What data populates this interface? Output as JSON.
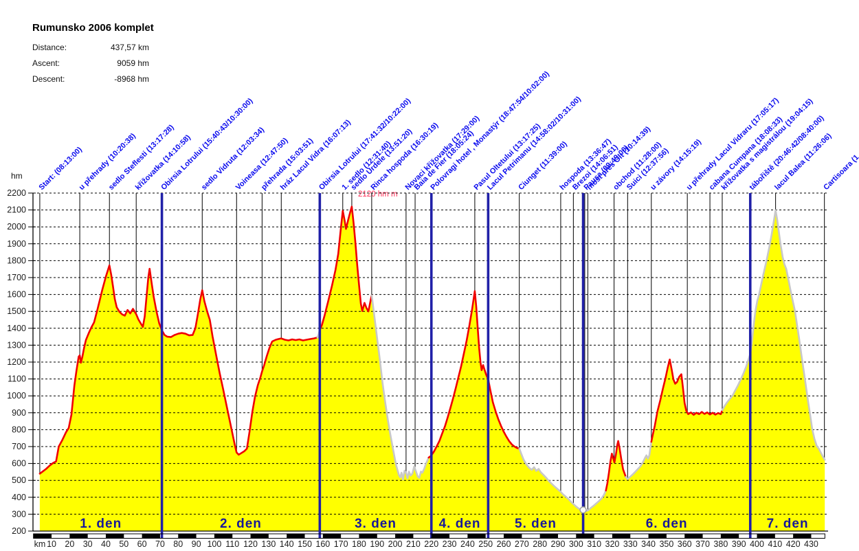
{
  "header": {
    "title": "Rumunsko 2006 komplet",
    "stats": [
      {
        "label": "Distance:",
        "value": "437,57 km"
      },
      {
        "label": "Ascent:",
        "value": "9059 hm"
      },
      {
        "label": "Descent:",
        "value": "-8968 hm"
      }
    ]
  },
  "annotation": {
    "max_label": "2120 hm m",
    "color": "#ff2d55"
  },
  "chart_data": {
    "type": "area",
    "title": "Rumunsko 2006 komplet",
    "y_axis": {
      "unit": "hm",
      "min": 200,
      "max": 2200,
      "tick_step": 100
    },
    "x_axis": {
      "unit": "km",
      "min": 0,
      "max": 437.57,
      "tick_start": 10,
      "tick_end": 430,
      "tick_step": 10
    },
    "grid": "horizontal-dashed",
    "colors": {
      "fill": "#ffff00",
      "line_red": "#f00000",
      "line_gray": "#c8c8c8",
      "day_line": "#2020a8",
      "waypoint_text": "#0a0aee",
      "day_text": "#171799",
      "axis_text": "#1c1c1c"
    },
    "day_boundaries_km": [
      71,
      158.3,
      220,
      251.4,
      303.9,
      396.3
    ],
    "days": [
      {
        "label": "1. den",
        "from_km": 3.5,
        "to_km": 71
      },
      {
        "label": "2. den",
        "from_km": 71,
        "to_km": 158.3
      },
      {
        "label": "3. den",
        "from_km": 158.3,
        "to_km": 220
      },
      {
        "label": "4. den",
        "from_km": 220,
        "to_km": 251.4
      },
      {
        "label": "5. den",
        "from_km": 251.4,
        "to_km": 303.9
      },
      {
        "label": "6. den",
        "from_km": 303.9,
        "to_km": 396.3
      },
      {
        "label": "7. den",
        "from_km": 396.3,
        "to_km": 437.6
      }
    ],
    "waypoints": [
      {
        "km": 3.5,
        "label": "Start: (08:13:00)"
      },
      {
        "km": 25.6,
        "label": "u přehrady (10:20:38)"
      },
      {
        "km": 42,
        "label": "sedlo Steflesti (13:17:28)"
      },
      {
        "km": 56.8,
        "label": "křižovatka (14:10:58)"
      },
      {
        "km": 71,
        "label": "Obirsia Lotrului (15:40:43/10:30:00)"
      },
      {
        "km": 93.3,
        "label": "sedlo Vidruta (12:03:34)"
      },
      {
        "km": 112.3,
        "label": "Voineasa (12:47:50)"
      },
      {
        "km": 126.4,
        "label": "přehrada (15:03:51)"
      },
      {
        "km": 137,
        "label": "hráz Lacul Vidra (16:07:13)"
      },
      {
        "km": 158.3,
        "label": "Obirsia Lotrului (17:41:32/10:22:00)"
      },
      {
        "km": 171,
        "label": "1. sedlo (12:31:40)"
      },
      {
        "km": 176,
        "label": "sedlo Urdele (13:51:20)"
      },
      {
        "km": 187,
        "label": "Rinca hospoda (16:30:19)"
      },
      {
        "km": 206,
        "label": "Novaci křižovatka (17:29:00)"
      },
      {
        "km": 211,
        "label": "Baia de Fier (18:05:24)"
      },
      {
        "km": 220,
        "label": "Polovragi hotel , Monastýr (18:47:54/10:02:00)"
      },
      {
        "km": 244,
        "label": "Pasul Oltetului (13:17:25)"
      },
      {
        "km": 251.4,
        "label": "Lacul Petrimanu (14:58:02/10:31:00)"
      },
      {
        "km": 268.6,
        "label": "Ciunget (11:39:00)"
      },
      {
        "km": 291.5,
        "label": "hospoda (13:36:47)"
      },
      {
        "km": 298.5,
        "label": "Brezoi (14:06:51)"
      },
      {
        "km": 304.8,
        "label": "Pausa (09:49:00)"
      },
      {
        "km": 306.5,
        "label": "most přes Olt (10:14:39)"
      },
      {
        "km": 321,
        "label": "obchod (11:28:00)"
      },
      {
        "km": 328.5,
        "label": "Suici (12:37:56)"
      },
      {
        "km": 341.6,
        "label": "u závory (14:15:19)"
      },
      {
        "km": 361.5,
        "label": "u přehrady Lacul Vidraru (17:05:17)"
      },
      {
        "km": 374,
        "label": "cabana Cumpana (18:08:33)"
      },
      {
        "km": 380.8,
        "label": "křižovatka s magistrálou (19:04:15)"
      },
      {
        "km": 396.3,
        "label": "tábořiště (20:46:42/08:40:00)"
      },
      {
        "km": 410.3,
        "label": "lacul Balea (11:26:06)"
      },
      {
        "km": 437.3,
        "label": "Cartisoara (1"
      }
    ],
    "segments": [
      {
        "from": 3.5,
        "to": 157,
        "color": "red"
      },
      {
        "from": 157,
        "to": 158.3,
        "color": "gray"
      },
      {
        "from": 158.3,
        "to": 187,
        "color": "red"
      },
      {
        "from": 187,
        "to": 218.5,
        "color": "gray"
      },
      {
        "from": 218.5,
        "to": 268.6,
        "color": "red"
      },
      {
        "from": 268.6,
        "to": 316.5,
        "color": "gray"
      },
      {
        "from": 316.5,
        "to": 327.5,
        "color": "red"
      },
      {
        "from": 327.5,
        "to": 341.6,
        "color": "gray"
      },
      {
        "from": 341.6,
        "to": 380.8,
        "color": "red"
      },
      {
        "from": 380.8,
        "to": 437.5,
        "color": "gray"
      }
    ],
    "marker": {
      "km": 303.9,
      "hm": 325
    },
    "profile": [
      [
        3.5,
        540
      ],
      [
        5,
        552
      ],
      [
        7,
        568
      ],
      [
        9,
        588
      ],
      [
        11,
        604
      ],
      [
        12.5,
        612
      ],
      [
        14,
        700
      ],
      [
        16,
        740
      ],
      [
        18,
        785
      ],
      [
        19.5,
        810
      ],
      [
        21,
        890
      ],
      [
        22.6,
        1060
      ],
      [
        23.8,
        1150
      ],
      [
        25,
        1232
      ],
      [
        25.6,
        1240
      ],
      [
        26.2,
        1196
      ],
      [
        27,
        1230
      ],
      [
        28,
        1285
      ],
      [
        29,
        1330
      ],
      [
        30.5,
        1370
      ],
      [
        32,
        1405
      ],
      [
        33.5,
        1435
      ],
      [
        35,
        1495
      ],
      [
        36.5,
        1560
      ],
      [
        38,
        1625
      ],
      [
        40,
        1705
      ],
      [
        42,
        1772
      ],
      [
        43,
        1715
      ],
      [
        44,
        1645
      ],
      [
        45,
        1572
      ],
      [
        46,
        1525
      ],
      [
        47.5,
        1498
      ],
      [
        49,
        1482
      ],
      [
        50.5,
        1475
      ],
      [
        52,
        1508
      ],
      [
        53.5,
        1488
      ],
      [
        55,
        1515
      ],
      [
        56.8,
        1483
      ],
      [
        58,
        1452
      ],
      [
        59.5,
        1425
      ],
      [
        60.5,
        1408
      ],
      [
        61.5,
        1470
      ],
      [
        62.5,
        1585
      ],
      [
        63.5,
        1700
      ],
      [
        64.2,
        1752
      ],
      [
        65.5,
        1655
      ],
      [
        66.5,
        1585
      ],
      [
        68,
        1500
      ],
      [
        69.5,
        1430
      ],
      [
        71,
        1388
      ],
      [
        72.5,
        1360
      ],
      [
        74,
        1350
      ],
      [
        76,
        1348
      ],
      [
        78,
        1360
      ],
      [
        80,
        1368
      ],
      [
        82,
        1372
      ],
      [
        84,
        1368
      ],
      [
        86,
        1358
      ],
      [
        88,
        1360
      ],
      [
        89.5,
        1400
      ],
      [
        91,
        1490
      ],
      [
        92.2,
        1570
      ],
      [
        93.3,
        1625
      ],
      [
        94.5,
        1560
      ],
      [
        96,
        1500
      ],
      [
        97.5,
        1450
      ],
      [
        99,
        1352
      ],
      [
        101,
        1242
      ],
      [
        103,
        1132
      ],
      [
        105,
        1032
      ],
      [
        107,
        930
      ],
      [
        109,
        828
      ],
      [
        110.5,
        752
      ],
      [
        111.5,
        700
      ],
      [
        112.3,
        665
      ],
      [
        113.5,
        652
      ],
      [
        115,
        662
      ],
      [
        116.5,
        672
      ],
      [
        118,
        688
      ],
      [
        119.5,
        790
      ],
      [
        121,
        905
      ],
      [
        122.5,
        995
      ],
      [
        124,
        1062
      ],
      [
        125.5,
        1110
      ],
      [
        126.4,
        1145
      ],
      [
        127.5,
        1180
      ],
      [
        129,
        1235
      ],
      [
        130.5,
        1285
      ],
      [
        132,
        1322
      ],
      [
        134,
        1332
      ],
      [
        136,
        1338
      ],
      [
        137,
        1340
      ],
      [
        139,
        1332
      ],
      [
        141,
        1328
      ],
      [
        143,
        1334
      ],
      [
        145,
        1330
      ],
      [
        147,
        1334
      ],
      [
        149,
        1328
      ],
      [
        151,
        1332
      ],
      [
        153,
        1336
      ],
      [
        155,
        1340
      ],
      [
        157,
        1345
      ],
      [
        157.6,
        1362
      ],
      [
        158.3,
        1390
      ],
      [
        159.5,
        1420
      ],
      [
        161,
        1478
      ],
      [
        163,
        1562
      ],
      [
        165,
        1650
      ],
      [
        167,
        1745
      ],
      [
        168.5,
        1840
      ],
      [
        169.8,
        1975
      ],
      [
        171,
        2095
      ],
      [
        172,
        2040
      ],
      [
        172.8,
        1988
      ],
      [
        174,
        2042
      ],
      [
        175.2,
        2090
      ],
      [
        176,
        2120
      ],
      [
        177,
        2020
      ],
      [
        178,
        1905
      ],
      [
        179,
        1775
      ],
      [
        180,
        1655
      ],
      [
        181,
        1545
      ],
      [
        181.8,
        1502
      ],
      [
        183,
        1550
      ],
      [
        184.2,
        1518
      ],
      [
        185.2,
        1500
      ],
      [
        186.2,
        1555
      ],
      [
        187,
        1595
      ],
      [
        188.5,
        1470
      ],
      [
        190,
        1340
      ],
      [
        191.5,
        1215
      ],
      [
        193,
        1075
      ],
      [
        194.5,
        960
      ],
      [
        196,
        852
      ],
      [
        197.5,
        760
      ],
      [
        199,
        672
      ],
      [
        200.5,
        590
      ],
      [
        202,
        532
      ],
      [
        202.8,
        518
      ],
      [
        203.5,
        545
      ],
      [
        204.3,
        505
      ],
      [
        205.2,
        558
      ],
      [
        206,
        545
      ],
      [
        206.8,
        512
      ],
      [
        207.6,
        552
      ],
      [
        208.5,
        528
      ],
      [
        209.5,
        540
      ],
      [
        210.5,
        582
      ],
      [
        211.5,
        552
      ],
      [
        212.5,
        522
      ],
      [
        213.3,
        515
      ],
      [
        214.2,
        552
      ],
      [
        215,
        545
      ],
      [
        216,
        568
      ],
      [
        217,
        598
      ],
      [
        218.5,
        635
      ],
      [
        219.2,
        640
      ],
      [
        220,
        648
      ],
      [
        221.5,
        672
      ],
      [
        223,
        702
      ],
      [
        224.5,
        735
      ],
      [
        226,
        778
      ],
      [
        227.5,
        820
      ],
      [
        229,
        872
      ],
      [
        230.5,
        928
      ],
      [
        232,
        985
      ],
      [
        233.5,
        1048
      ],
      [
        235,
        1112
      ],
      [
        236.5,
        1178
      ],
      [
        238,
        1252
      ],
      [
        239.5,
        1328
      ],
      [
        241,
        1415
      ],
      [
        242.5,
        1512
      ],
      [
        244,
        1620
      ],
      [
        244.8,
        1528
      ],
      [
        245.6,
        1405
      ],
      [
        246.4,
        1285
      ],
      [
        247.2,
        1195
      ],
      [
        247.8,
        1152
      ],
      [
        248.6,
        1182
      ],
      [
        249.4,
        1155
      ],
      [
        250.2,
        1128
      ],
      [
        251.4,
        1098
      ],
      [
        252.5,
        1038
      ],
      [
        254,
        962
      ],
      [
        255.5,
        908
      ],
      [
        257,
        862
      ],
      [
        258.5,
        822
      ],
      [
        260,
        788
      ],
      [
        261.5,
        758
      ],
      [
        263,
        732
      ],
      [
        264.5,
        712
      ],
      [
        266,
        700
      ],
      [
        267.3,
        692
      ],
      [
        268.6,
        688
      ],
      [
        269.8,
        655
      ],
      [
        271,
        622
      ],
      [
        272.5,
        595
      ],
      [
        274,
        575
      ],
      [
        275.5,
        562
      ],
      [
        276.8,
        578
      ],
      [
        278,
        556
      ],
      [
        279.3,
        568
      ],
      [
        280.5,
        548
      ],
      [
        282,
        532
      ],
      [
        283.5,
        515
      ],
      [
        285,
        496
      ],
      [
        286.5,
        480
      ],
      [
        288,
        465
      ],
      [
        289.8,
        448
      ],
      [
        291.5,
        432
      ],
      [
        293,
        415
      ],
      [
        294.5,
        402
      ],
      [
        296,
        388
      ],
      [
        297.3,
        372
      ],
      [
        298.5,
        360
      ],
      [
        300,
        345
      ],
      [
        301.5,
        333
      ],
      [
        303,
        324
      ],
      [
        304.5,
        319
      ],
      [
        306,
        320
      ],
      [
        306.8,
        324
      ],
      [
        308,
        336
      ],
      [
        309.5,
        348
      ],
      [
        311,
        362
      ],
      [
        312.5,
        376
      ],
      [
        314,
        392
      ],
      [
        315.3,
        412
      ],
      [
        316.5,
        440
      ],
      [
        317.3,
        482
      ],
      [
        318.2,
        548
      ],
      [
        319,
        612
      ],
      [
        319.8,
        658
      ],
      [
        320.5,
        632
      ],
      [
        321.2,
        606
      ],
      [
        322,
        652
      ],
      [
        322.8,
        710
      ],
      [
        323.3,
        733
      ],
      [
        324,
        692
      ],
      [
        325,
        625
      ],
      [
        326,
        565
      ],
      [
        327.5,
        520
      ],
      [
        328.5,
        508
      ],
      [
        329.5,
        518
      ],
      [
        331,
        532
      ],
      [
        332.5,
        548
      ],
      [
        334,
        565
      ],
      [
        335.5,
        582
      ],
      [
        337,
        608
      ],
      [
        338.2,
        635
      ],
      [
        338.9,
        648
      ],
      [
        339.7,
        628
      ],
      [
        340.5,
        648
      ],
      [
        341.6,
        728
      ],
      [
        342.5,
        775
      ],
      [
        343.5,
        822
      ],
      [
        345,
        908
      ],
      [
        346.5,
        972
      ],
      [
        348,
        1042
      ],
      [
        349.5,
        1108
      ],
      [
        350.7,
        1168
      ],
      [
        351.8,
        1215
      ],
      [
        352.8,
        1158
      ],
      [
        353.8,
        1098
      ],
      [
        354.8,
        1072
      ],
      [
        355.8,
        1082
      ],
      [
        357,
        1112
      ],
      [
        358.2,
        1128
      ],
      [
        359,
        1055
      ],
      [
        360,
        958
      ],
      [
        360.9,
        912
      ],
      [
        362,
        892
      ],
      [
        363.5,
        902
      ],
      [
        365,
        888
      ],
      [
        366.5,
        900
      ],
      [
        368,
        892
      ],
      [
        369.5,
        905
      ],
      [
        371,
        893
      ],
      [
        372.5,
        902
      ],
      [
        374,
        890
      ],
      [
        375.5,
        900
      ],
      [
        377,
        889
      ],
      [
        378.5,
        898
      ],
      [
        380,
        892
      ],
      [
        380.8,
        915
      ],
      [
        382,
        938
      ],
      [
        383.5,
        962
      ],
      [
        385,
        982
      ],
      [
        386.5,
        1002
      ],
      [
        388,
        1032
      ],
      [
        389.5,
        1062
      ],
      [
        391,
        1096
      ],
      [
        392.5,
        1132
      ],
      [
        394,
        1172
      ],
      [
        395.2,
        1212
      ],
      [
        396.3,
        1248
      ],
      [
        397.3,
        1330
      ],
      [
        398.3,
        1428
      ],
      [
        399.2,
        1505
      ],
      [
        400.2,
        1562
      ],
      [
        401,
        1592
      ],
      [
        402,
        1642
      ],
      [
        403.2,
        1702
      ],
      [
        404.4,
        1758
      ],
      [
        405.6,
        1815
      ],
      [
        406.8,
        1878
      ],
      [
        408,
        1948
      ],
      [
        409,
        2012
      ],
      [
        410.3,
        2098
      ],
      [
        411.2,
        2042
      ],
      [
        412.2,
        1962
      ],
      [
        413.2,
        1888
      ],
      [
        414.2,
        1822
      ],
      [
        415.2,
        1778
      ],
      [
        416.2,
        1752
      ],
      [
        417.4,
        1688
      ],
      [
        418.6,
        1622
      ],
      [
        419.8,
        1562
      ],
      [
        421,
        1502
      ],
      [
        422.2,
        1418
      ],
      [
        423.4,
        1332
      ],
      [
        424.6,
        1242
      ],
      [
        425.8,
        1152
      ],
      [
        427,
        1062
      ],
      [
        428.2,
        972
      ],
      [
        429.4,
        888
      ],
      [
        430.6,
        802
      ],
      [
        431.8,
        745
      ],
      [
        433,
        705
      ],
      [
        434.2,
        688
      ],
      [
        435.4,
        662
      ],
      [
        436.5,
        640
      ],
      [
        437.5,
        622
      ]
    ]
  }
}
